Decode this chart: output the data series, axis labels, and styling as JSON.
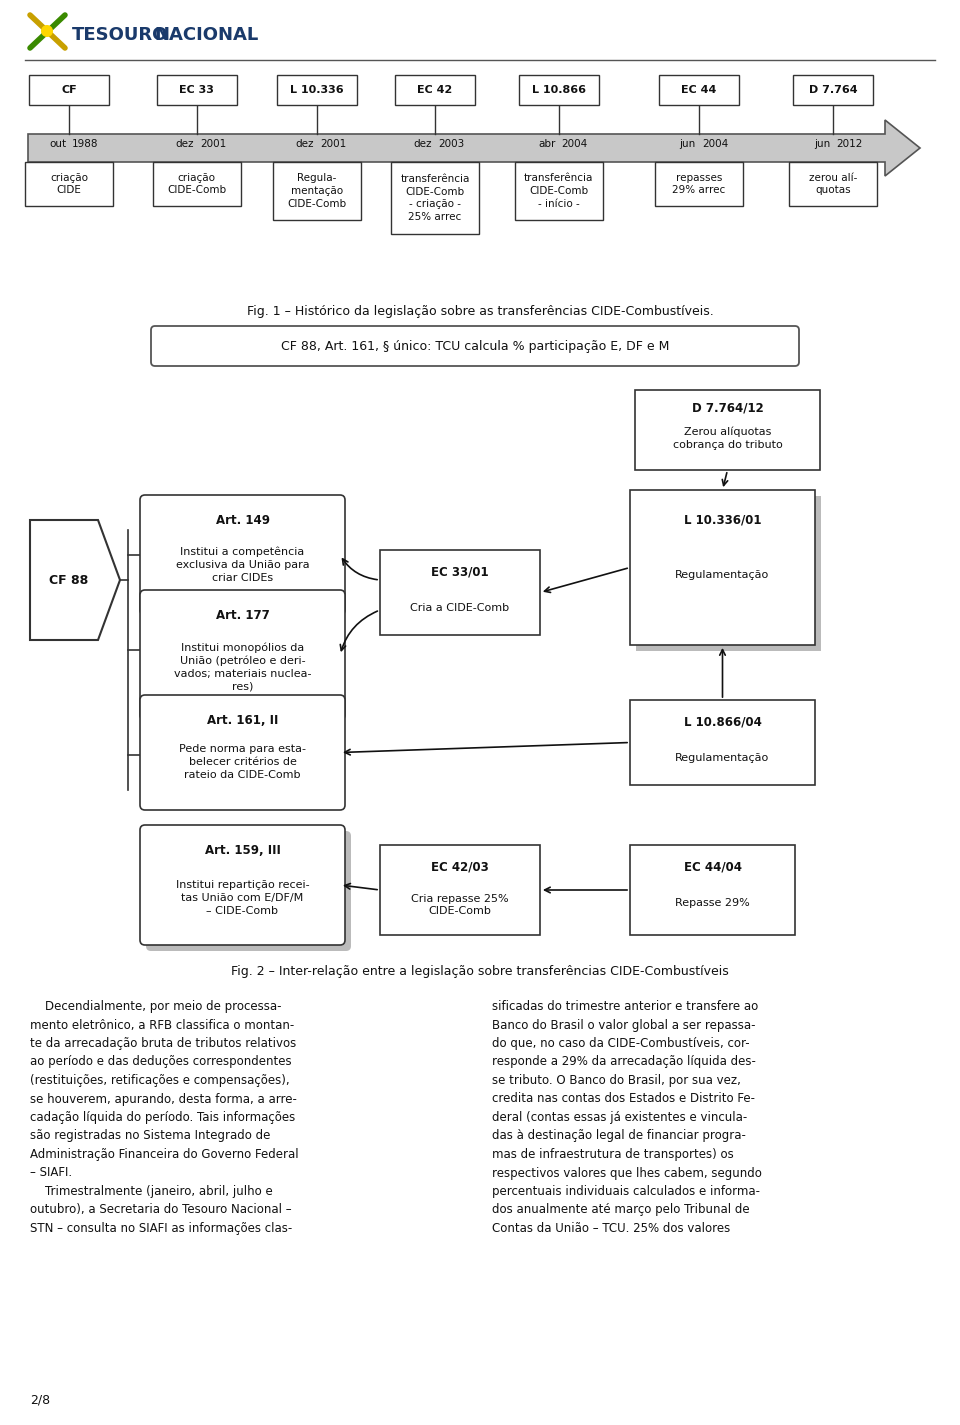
{
  "bg_color": "#ffffff",
  "page_num": "2/8",
  "timeline_events": [
    {
      "label": "CF",
      "month": "out",
      "year": "1988",
      "xf": 0.072
    },
    {
      "label": "EC 33",
      "month": "dez",
      "year": "2001",
      "xf": 0.205
    },
    {
      "label": "L 10.336",
      "month": "dez",
      "year": "2001",
      "xf": 0.33
    },
    {
      "label": "EC 42",
      "month": "dez",
      "year": "2003",
      "xf": 0.453
    },
    {
      "label": "L 10.866",
      "month": "abr",
      "year": "2004",
      "xf": 0.582
    },
    {
      "label": "EC 44",
      "month": "jun",
      "year": "2004",
      "xf": 0.728
    },
    {
      "label": "D 7.764",
      "month": "jun",
      "year": "2012",
      "xf": 0.868
    }
  ],
  "timeline_boxes": [
    {
      "text": "criação\nCIDE"
    },
    {
      "text": "criação\nCIDE-Comb"
    },
    {
      "text": "Regula-\nmentação\nCIDE-Comb"
    },
    {
      "text": "transferência\nCIDE-Comb\n- criação -\n25% arrec"
    },
    {
      "text": "transferência\nCIDE-Comb\n- início -"
    },
    {
      "text": "repasses\n29% arrec"
    },
    {
      "text": "zerou alí-\nquotas"
    }
  ],
  "fig1_caption": "Fig. 1 – Histórico da legislação sobre as transferências CIDE-Combustíveis.",
  "roundbox_text": "CF 88, Art. 161, § único: TCU calcula % participação E, DF e M",
  "roundbox_bold": "CF 88, Art. 161, § único:",
  "fig2_caption": "Fig. 2 – Inter-relação entre a legislação sobre transferências CIDE-Combustíveis",
  "para_left": "    Decendialmente, por meio de processa-\nmento eletrônico, a RFB classifica o montan-\nte da arrecadação bruta de tributos relativos\nao período e das deduções correspondentes\n(restituições, retificações e compensações),\nse houverem, apurando, desta forma, a arre-\ncadação líquida do período. Tais informações\nsão registradas no Sistema Integrado de\nAdministração Financeira do Governo Federal\n– SIAFI.\n    Trimestralmente (janeiro, abril, julho e\noutubro), a Secretaria do Tesouro Nacional –\nSTN – consulta no SIAFI as informações clas-",
  "para_right": "sificadas do trimestre anterior e transfere ao\nBanco do Brasil o valor global a ser repassa-\ndo que, no caso da CIDE-Combustíveis, cor-\nresponde a 29% da arrecadação líquida des-\nse tributo. O Banco do Brasil, por sua vez,\ncredita nas contas dos Estados e Distrito Fe-\nderal (contas essas já existentes e vincula-\ndas à destinação legal de financiar progra-\nmas de infraestrutura de transportes) os\nrespectivos valores que lhes cabem, segundo\npercentuais individuais calculados e informa-\ndos anualmente até março pelo Tribunal de\nContas da União – TCU. 25% dos valores"
}
